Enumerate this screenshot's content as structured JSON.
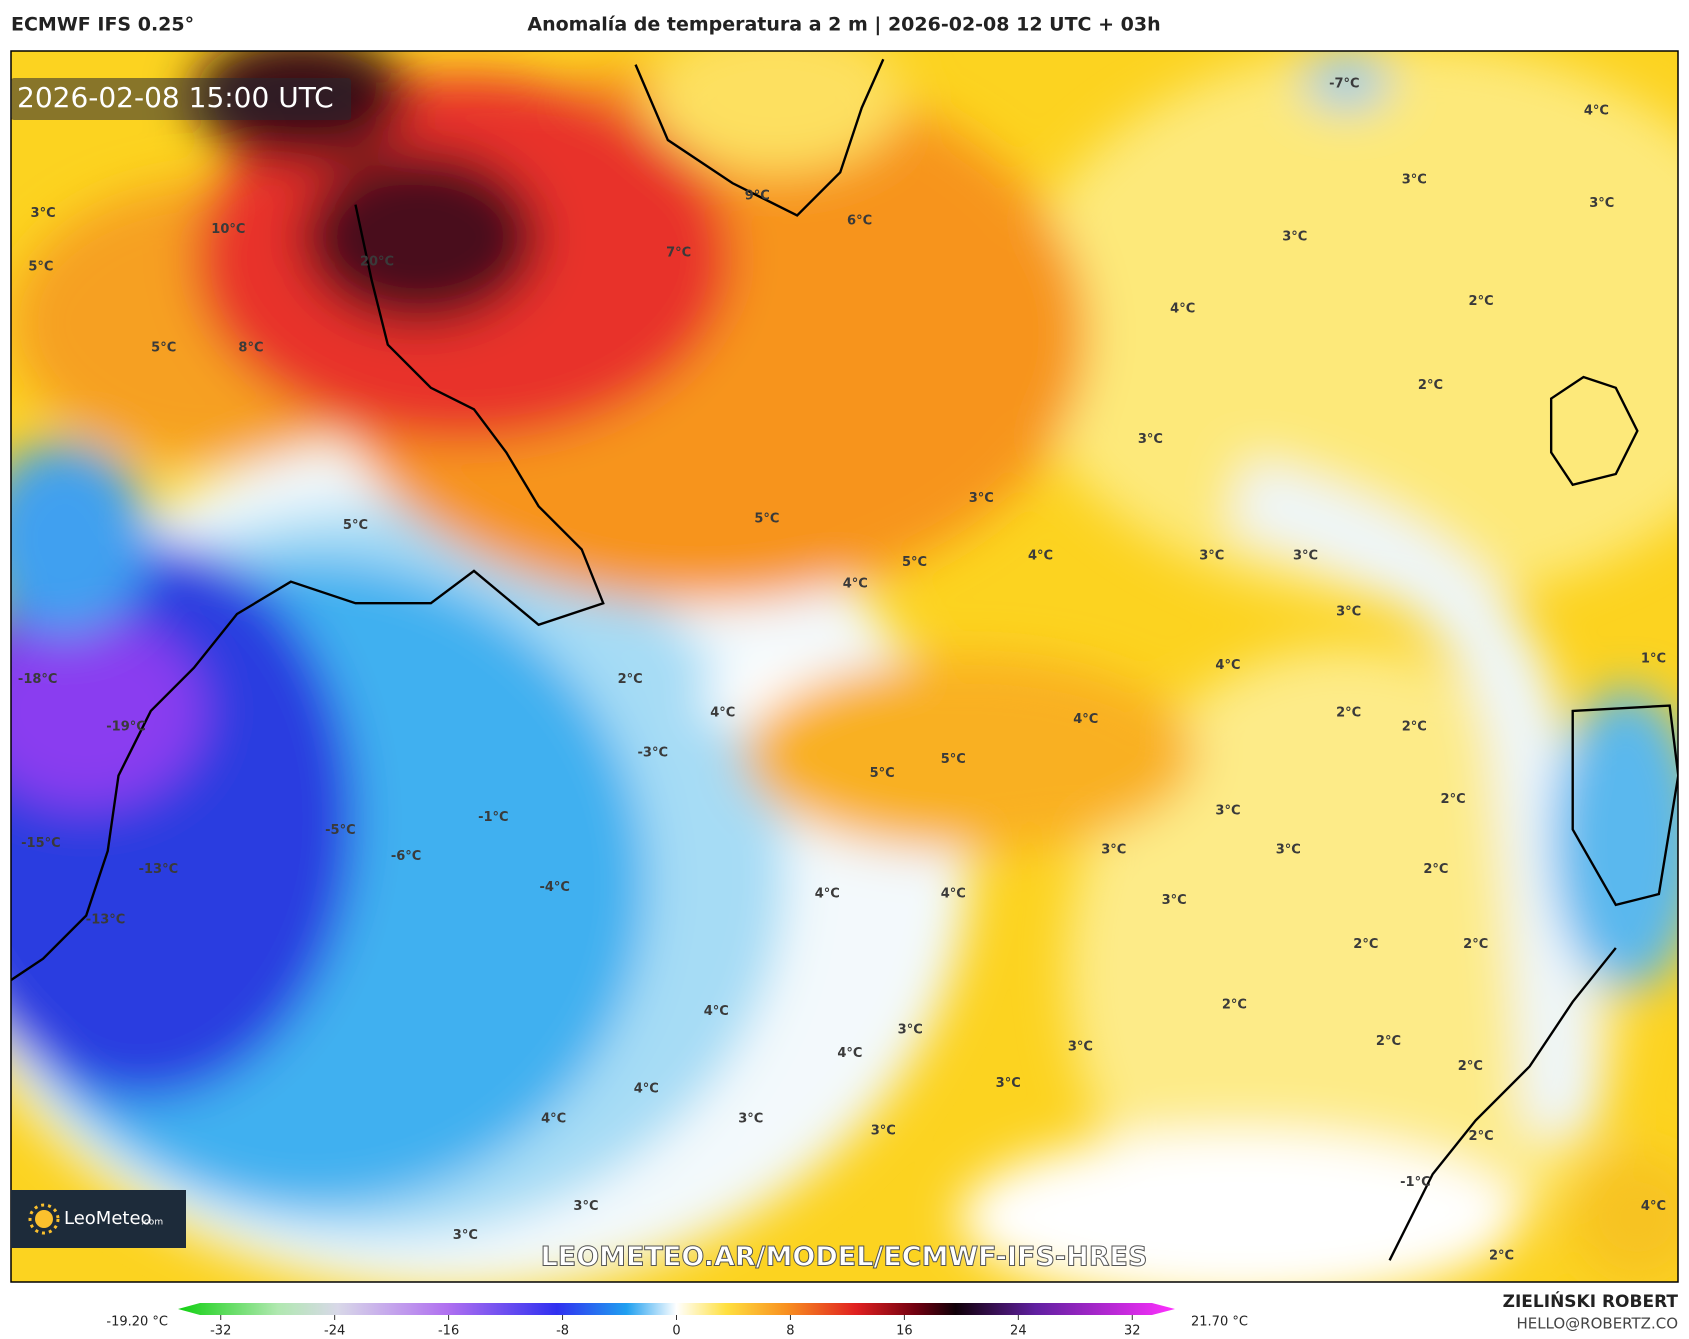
{
  "header": {
    "model": "ECMWF IFS 0.25°",
    "title": "Anomalía de temperatura a 2 m | 2026-02-08 12 UTC + 03h"
  },
  "timestamp": "2026-02-08 15:00 UTC",
  "watermark": "LEOMETEO.AR/MODEL/ECMWF-IFS-HRES",
  "logo": {
    "name": "LeoMeteo",
    "suffix": ".com"
  },
  "colorbar": {
    "min_label": "-19.20 °C",
    "max_label": "21.70 °C",
    "range": [
      -35,
      35
    ],
    "ticks": [
      -32,
      -24,
      -16,
      -8,
      0,
      8,
      16,
      24,
      32
    ]
  },
  "credits": {
    "author": "ZIELIŃSKI ROBERT",
    "email": "HELLO@ROBERTZ.CO"
  },
  "map_labels": [
    "3°C",
    "10°C",
    "5°C",
    "20°C",
    "7°C",
    "6°C",
    "9°C",
    "-7°C",
    "4°C",
    "3°C",
    "3°C",
    "3°C",
    "4°C",
    "2°C",
    "5°C",
    "8°C",
    "2°C",
    "3°C",
    "3°C",
    "5°C",
    "5°C",
    "5°C",
    "4°C",
    "3°C",
    "3°C",
    "4°C",
    "3°C",
    "1°C",
    "-18°C",
    "2°C",
    "4°C",
    "4°C",
    "2°C",
    "4°C",
    "2°C",
    "-19°C",
    "-3°C",
    "5°C",
    "5°C",
    "2°C",
    "3°C",
    "-1°C",
    "-5°C",
    "3°C",
    "3°C",
    "-15°C",
    "-6°C",
    "-13°C",
    "2°C",
    "-4°C",
    "4°C",
    "4°C",
    "3°C",
    "-13°C",
    "2°C",
    "2°C",
    "2°C",
    "4°C",
    "3°C",
    "2°C",
    "4°C",
    "3°C",
    "3°C",
    "4°C",
    "2°C",
    "4°C",
    "3°C",
    "3°C",
    "2°C",
    "-1°C",
    "3°C",
    "4°C",
    "3°C",
    "2°C"
  ]
}
